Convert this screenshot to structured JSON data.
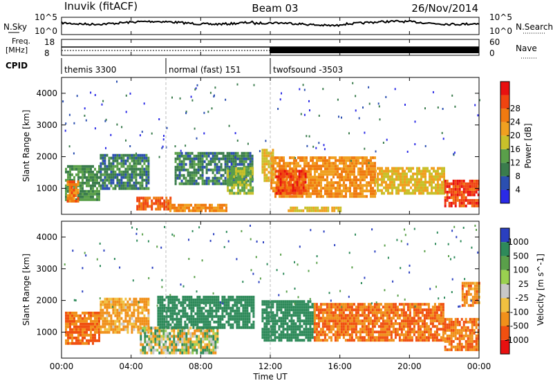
{
  "header": {
    "station": "Inuvik (fitACF)",
    "beam": "Beam 03",
    "date": "26/Nov/2014"
  },
  "noise_panel": {
    "left_label": "N.Sky",
    "right_label": "N.Search",
    "left_ticks": [
      "10^5",
      "10^0"
    ],
    "right_ticks": [
      "10^5",
      "10^0"
    ]
  },
  "freq_panel": {
    "left_label_1": "Freq.",
    "left_label_2": "[MHz]",
    "right_label": "Nave",
    "left_ticks": [
      "18",
      "8"
    ],
    "right_ticks": [
      "60",
      "0"
    ]
  },
  "cpid": {
    "label": "CPID",
    "modes": [
      {
        "name": "themis 3300",
        "start_hour": 0,
        "end_hour": 6
      },
      {
        "name": "normal (fast) 151",
        "start_hour": 6,
        "end_hour": 12
      },
      {
        "name": "twofsound -3503",
        "start_hour": 12,
        "end_hour": 24
      }
    ]
  },
  "x_axis": {
    "label": "Time UT",
    "ticks": [
      "00:00",
      "04:00",
      "08:00",
      "12:00",
      "16:00",
      "20:00",
      "00:00"
    ]
  },
  "chart_data": [
    {
      "type": "heatmap",
      "quantity": "Power",
      "ylabel": "Slant Range [km]",
      "ylim": [
        180,
        4500
      ],
      "yticks": [
        "1000",
        "2000",
        "3000",
        "4000"
      ],
      "xlim_hours": [
        0,
        24
      ],
      "colorbar": {
        "label": "Power [dB]",
        "ticks": [
          "4",
          "8",
          "12",
          "16",
          "20",
          "24",
          "28"
        ],
        "colors": [
          "#2a2ae6",
          "#2b4fb0",
          "#3a7c4c",
          "#5aa04a",
          "#c8c02a",
          "#f0a020",
          "#f07a10",
          "#f04410",
          "#e81010"
        ]
      },
      "regions": [
        {
          "t0": 0.2,
          "t1": 2.2,
          "r0": 600,
          "r1": 1700,
          "dB": 10
        },
        {
          "t0": 0.3,
          "t1": 0.9,
          "r0": 550,
          "r1": 1200,
          "dB": 24
        },
        {
          "t0": 2.2,
          "t1": 5.0,
          "r0": 950,
          "r1": 2000,
          "dB": 8
        },
        {
          "t0": 4.3,
          "t1": 6.3,
          "r0": 300,
          "r1": 700,
          "dB": 26
        },
        {
          "t0": 6.2,
          "t1": 9.5,
          "r0": 250,
          "r1": 500,
          "dB": 22
        },
        {
          "t0": 6.5,
          "t1": 11.0,
          "r0": 1100,
          "r1": 2100,
          "dB": 8
        },
        {
          "t0": 9.5,
          "t1": 11.0,
          "r0": 800,
          "r1": 1600,
          "dB": 14
        },
        {
          "t0": 11.5,
          "t1": 12.2,
          "r0": 1200,
          "r1": 2200,
          "dB": 18
        },
        {
          "t0": 12.0,
          "t1": 18.0,
          "r0": 700,
          "r1": 2000,
          "dB": 22
        },
        {
          "t0": 12.3,
          "t1": 14.0,
          "r0": 800,
          "r1": 1500,
          "dB": 28
        },
        {
          "t0": 18.0,
          "t1": 22.0,
          "r0": 800,
          "r1": 1600,
          "dB": 18
        },
        {
          "t0": 22.0,
          "t1": 24.0,
          "r0": 400,
          "r1": 1200,
          "dB": 28
        },
        {
          "t0": 13.0,
          "t1": 16.0,
          "r0": 250,
          "r1": 400,
          "dB": 18
        }
      ]
    },
    {
      "type": "heatmap",
      "quantity": "Velocity",
      "ylabel": "Slant Range [km]",
      "ylim": [
        180,
        4500
      ],
      "yticks": [
        "1000",
        "2000",
        "3000",
        "4000"
      ],
      "xlim_hours": [
        0,
        24
      ],
      "colorbar": {
        "label": "Velocity [m s^-1]",
        "ticks": [
          "1000",
          "500",
          "100",
          "25",
          "-25",
          "-100",
          "-500",
          "-1000"
        ],
        "colors": [
          "#2a3fc0",
          "#2e8a5a",
          "#5aa04a",
          "#9ad050",
          "#c8c8c8",
          "#f0c040",
          "#f0901a",
          "#f05010",
          "#e81010"
        ]
      },
      "regions": [
        {
          "t0": 0.2,
          "t1": 2.2,
          "r0": 600,
          "r1": 1600,
          "v": -300
        },
        {
          "t0": 2.2,
          "t1": 5.0,
          "r0": 950,
          "r1": 2000,
          "v": -150
        },
        {
          "t0": 4.5,
          "t1": 9.0,
          "r0": 300,
          "r1": 1100,
          "v": 0
        },
        {
          "t0": 5.5,
          "t1": 11.0,
          "r0": 1100,
          "r1": 2100,
          "v": 300
        },
        {
          "t0": 11.5,
          "t1": 14.5,
          "r0": 700,
          "r1": 2000,
          "v": 300
        },
        {
          "t0": 14.5,
          "t1": 22.0,
          "r0": 700,
          "r1": 1900,
          "v": -300
        },
        {
          "t0": 22.0,
          "t1": 24.0,
          "r0": 400,
          "r1": 1400,
          "v": -250
        },
        {
          "t0": 23.0,
          "t1": 24.0,
          "r0": 1800,
          "r1": 2500,
          "v": -200
        }
      ]
    }
  ]
}
